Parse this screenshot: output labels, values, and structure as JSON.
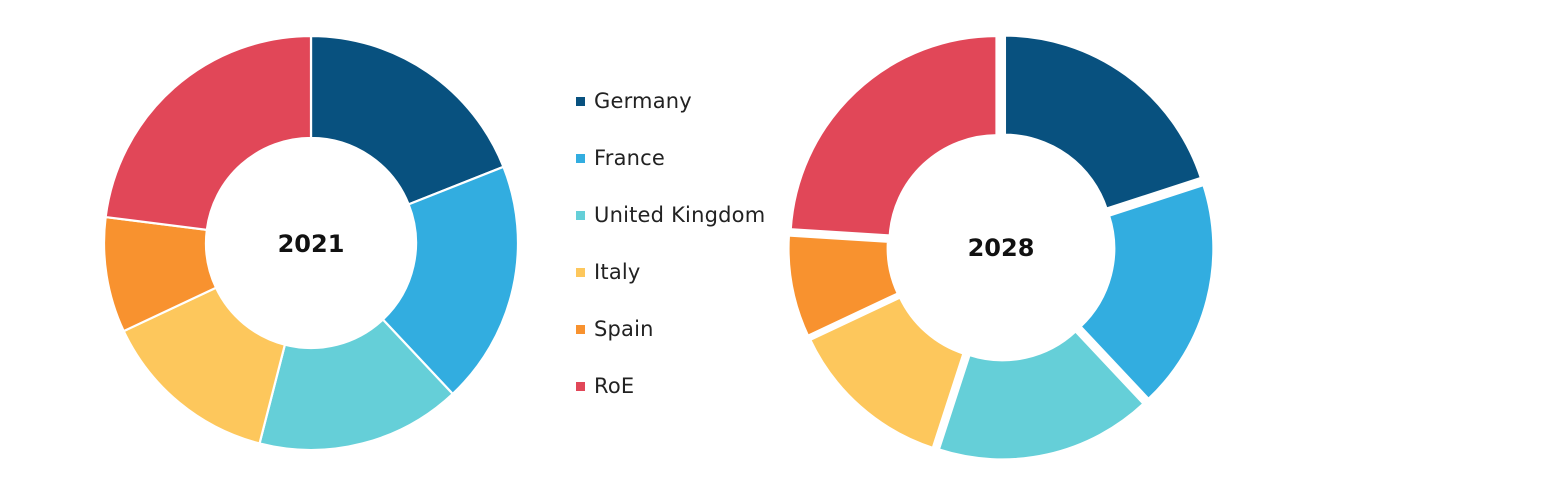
{
  "chart_data": [
    {
      "type": "pie",
      "center_label": "2021",
      "categories": [
        "Germany",
        "France",
        "United Kingdom",
        "Italy",
        "Spain",
        "RoE"
      ],
      "values": [
        19,
        19,
        16,
        14,
        9,
        23
      ],
      "unit": "percent (estimated)"
    },
    {
      "type": "pie",
      "center_label": "2028",
      "categories": [
        "Germany",
        "France",
        "United Kingdom",
        "Italy",
        "Spain",
        "RoE"
      ],
      "values": [
        20,
        18,
        17,
        13,
        8,
        24
      ],
      "unit": "percent (estimated)"
    }
  ],
  "legend": {
    "placement": "center",
    "items": [
      {
        "label": "Germany",
        "color": "#08517f"
      },
      {
        "label": "France",
        "color": "#32ade0"
      },
      {
        "label": "United Kingdom",
        "color": "#65cfd8"
      },
      {
        "label": "Italy",
        "color": "#fdc75c"
      },
      {
        "label": "Spain",
        "color": "#f8922f"
      },
      {
        "label": "RoE",
        "color": "#e14758"
      }
    ]
  }
}
